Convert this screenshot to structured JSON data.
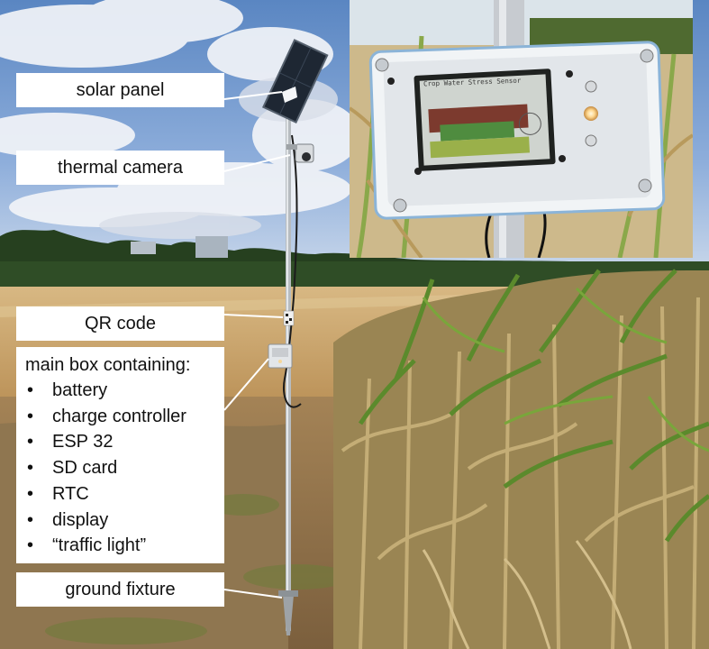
{
  "labels": {
    "solar_panel": "solar panel",
    "thermal_camera": "thermal camera",
    "qr_code": "QR code",
    "main_box_heading": "main box containing:",
    "main_box_items": [
      "battery",
      "charge controller",
      "ESP 32",
      "SD card",
      "RTC",
      "display",
      "“traffic light”"
    ],
    "ground_fixture": "ground fixture"
  },
  "inset": {
    "display_title": "Crop Water Stress Sensor"
  },
  "colors": {
    "sky": "#6f97c9",
    "field_stubble": "#c9a46a",
    "maize_green": "#5f8a2e",
    "maize_dry": "#b49a5e",
    "soil": "#8a6c47",
    "enclosure": "#e8ecef",
    "led_on": "#ffdfa0"
  }
}
